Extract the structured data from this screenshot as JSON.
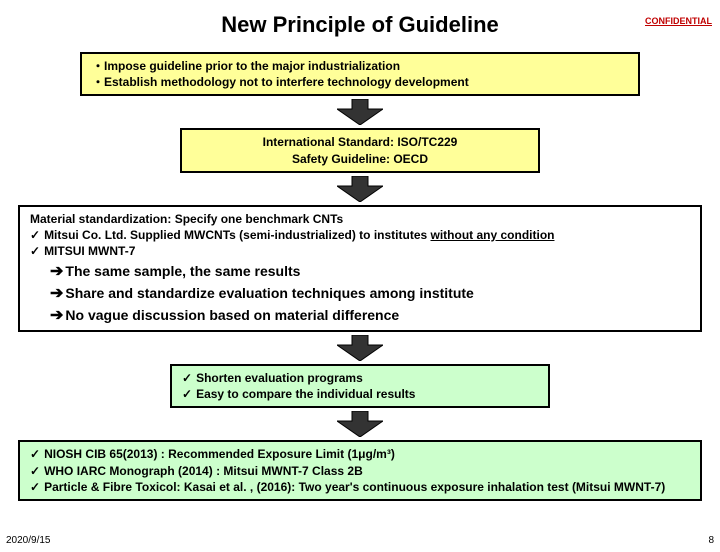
{
  "header": {
    "confidential": "CONFIDENTIAL",
    "confidential_color": "#c00000",
    "title": "New Principle of Guideline"
  },
  "colors": {
    "arrow_fill": "#333333",
    "arrow_stroke": "#000000",
    "box_yellow": "#ffff99",
    "box_green": "#ccffcc",
    "box_white": "#ffffff",
    "border": "#000000"
  },
  "box1": {
    "line1": "・Impose guideline prior to the major industrialization",
    "line2": "・Establish methodology not to interfere technology development"
  },
  "box2": {
    "line1": "International Standard: ISO/TC229",
    "line2": "Safety Guideline: OECD"
  },
  "box3": {
    "heading": "Material standardization: Specify one benchmark CNTs",
    "item1_pre": "Mitsui Co. Ltd. Supplied MWCNTs (semi-industrialized) to institutes ",
    "item1_under": "without any condition",
    "item2": "MITSUI MWNT-7",
    "result1": "The same sample, the same results",
    "result2": "Share and standardize evaluation techniques among institute",
    "result3": "No vague discussion based on material difference"
  },
  "box4": {
    "item1": "Shorten evaluation programs",
    "item2": "Easy to compare the individual results"
  },
  "box5": {
    "item1": "NIOSH CIB 65(2013) : Recommended Exposure Limit (1μg/m³)",
    "item2": "WHO IARC Monograph (2014) : Mitsui MWNT-7 Class 2B",
    "item3": "Particle & Fibre Toxicol: Kasai et al. , (2016): Two year's continuous exposure inhalation test (Mitsui MWNT-7)"
  },
  "footer": {
    "date": "2020/9/15",
    "page": "8"
  },
  "arrow": {
    "width": 46,
    "height": 26
  }
}
